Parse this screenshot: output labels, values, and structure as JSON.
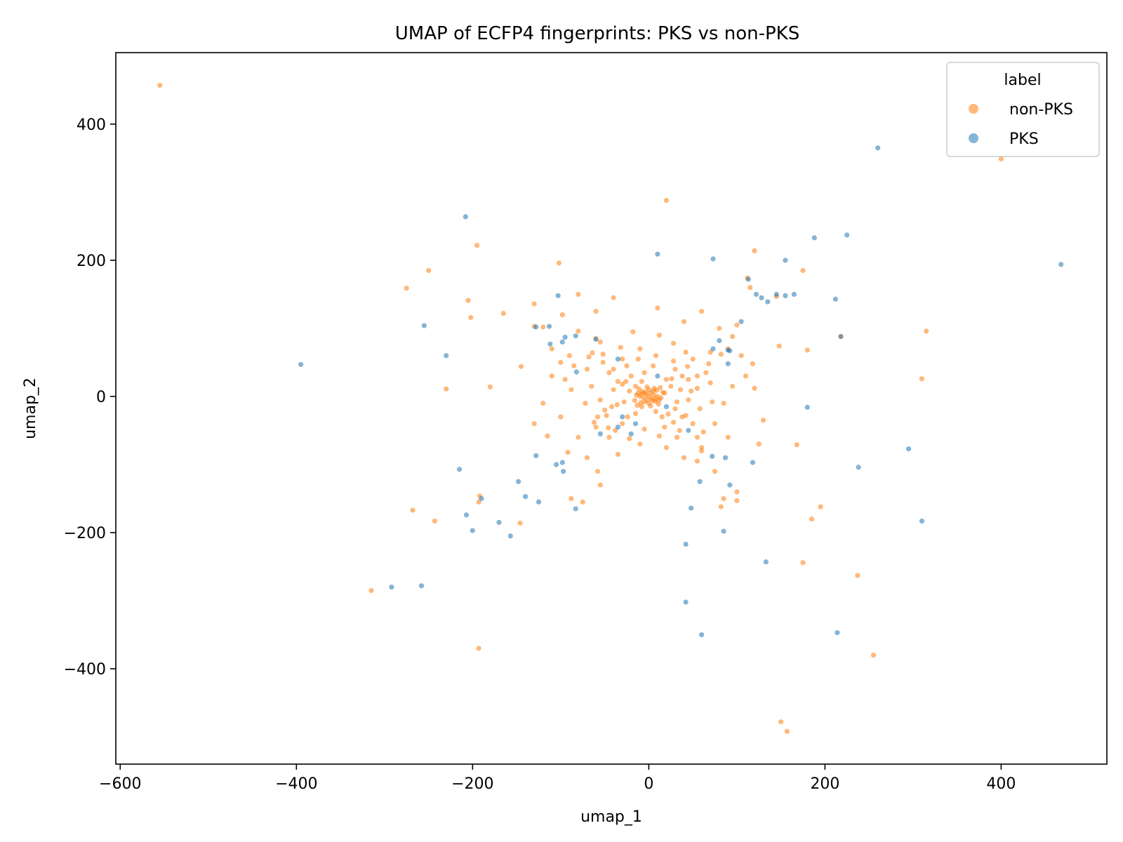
{
  "chart_data": {
    "type": "scatter",
    "title": "UMAP of ECFP4 fingerprints: PKS vs non-PKS",
    "xlabel": "umap_1",
    "ylabel": "umap_2",
    "xlim": [
      -605,
      520
    ],
    "ylim": [
      -540,
      505
    ],
    "xticks": [
      -600,
      -400,
      -200,
      0,
      200,
      400
    ],
    "yticks": [
      -400,
      -200,
      0,
      200,
      400
    ],
    "xtick_labels": [
      "−600",
      "−400",
      "−200",
      "0",
      "200",
      "400"
    ],
    "ytick_labels": [
      "−400",
      "−200",
      "0",
      "200",
      "400"
    ],
    "grid": false,
    "legend": {
      "title": "label",
      "placement": "top-right"
    },
    "series": [
      {
        "name": "non-PKS",
        "color": "#ff7f0e",
        "points": [
          [
            -555,
            457
          ],
          [
            -275,
            159
          ],
          [
            -250,
            185
          ],
          [
            -195,
            222
          ],
          [
            -205,
            141
          ],
          [
            -202,
            116
          ],
          [
            -180,
            14
          ],
          [
            -230,
            11
          ],
          [
            -165,
            122
          ],
          [
            -145,
            44
          ],
          [
            -268,
            -167
          ],
          [
            -243,
            -183
          ],
          [
            -315,
            -285
          ],
          [
            -192,
            -146
          ],
          [
            -193,
            -155
          ],
          [
            -146,
            -186
          ],
          [
            -193,
            -370
          ],
          [
            20,
            288
          ],
          [
            -102,
            196
          ],
          [
            -130,
            136
          ],
          [
            -120,
            102
          ],
          [
            -110,
            30
          ],
          [
            -80,
            150
          ],
          [
            -60,
            125
          ],
          [
            -55,
            80
          ],
          [
            -40,
            145
          ],
          [
            -90,
            60
          ],
          [
            -70,
            40
          ],
          [
            -30,
            55
          ],
          [
            -10,
            70
          ],
          [
            10,
            130
          ],
          [
            40,
            110
          ],
          [
            60,
            125
          ],
          [
            80,
            100
          ],
          [
            100,
            105
          ],
          [
            90,
            70
          ],
          [
            70,
            65
          ],
          [
            50,
            55
          ],
          [
            30,
            40
          ],
          [
            20,
            25
          ],
          [
            -20,
            30
          ],
          [
            -40,
            10
          ],
          [
            -50,
            -20
          ],
          [
            -60,
            -45
          ],
          [
            -45,
            -60
          ],
          [
            -30,
            -40
          ],
          [
            -15,
            -25
          ],
          [
            15,
            -30
          ],
          [
            35,
            -50
          ],
          [
            55,
            -60
          ],
          [
            75,
            -40
          ],
          [
            90,
            -60
          ],
          [
            60,
            -80
          ],
          [
            40,
            -90
          ],
          [
            20,
            -75
          ],
          [
            -10,
            -70
          ],
          [
            -35,
            -85
          ],
          [
            -70,
            -90
          ],
          [
            -80,
            -60
          ],
          [
            -100,
            -30
          ],
          [
            -120,
            -10
          ],
          [
            -130,
            -40
          ],
          [
            -115,
            -58
          ],
          [
            -92,
            -82
          ],
          [
            -58,
            -110
          ],
          [
            -55,
            -130
          ],
          [
            -75,
            -155
          ],
          [
            -88,
            -150
          ],
          [
            -130,
            103
          ],
          [
            -98,
            120
          ],
          [
            -80,
            96
          ],
          [
            -60,
            85
          ],
          [
            -110,
            70
          ],
          [
            -95,
            25
          ],
          [
            -65,
            15
          ],
          [
            -45,
            35
          ],
          [
            -25,
            45
          ],
          [
            -15,
            15
          ],
          [
            -5,
            35
          ],
          [
            5,
            45
          ],
          [
            25,
            15
          ],
          [
            45,
            25
          ],
          [
            65,
            35
          ],
          [
            85,
            -10
          ],
          [
            110,
            30
          ],
          [
            120,
            12
          ],
          [
            125,
            -70
          ],
          [
            130,
            -35
          ],
          [
            115,
            160
          ],
          [
            120,
            214
          ],
          [
            112,
            174
          ],
          [
            145,
            147
          ],
          [
            175,
            185
          ],
          [
            148,
            74
          ],
          [
            180,
            68
          ],
          [
            218,
            88
          ],
          [
            310,
            26
          ],
          [
            315,
            96
          ],
          [
            400,
            349
          ],
          [
            185,
            -180
          ],
          [
            195,
            -162
          ],
          [
            175,
            -244
          ],
          [
            237,
            -263
          ],
          [
            255,
            -380
          ],
          [
            150,
            -478
          ],
          [
            157,
            -492
          ],
          [
            168,
            -71
          ],
          [
            100,
            -140
          ],
          [
            100,
            -153
          ],
          [
            85,
            -150
          ],
          [
            82,
            -162
          ],
          [
            75,
            -110
          ],
          [
            55,
            -95
          ],
          [
            60,
            -75
          ],
          [
            32,
            -60
          ],
          [
            18,
            -45
          ],
          [
            8,
            -22
          ],
          [
            -8,
            -15
          ],
          [
            -28,
            -8
          ],
          [
            -48,
            -28
          ],
          [
            -62,
            -38
          ],
          [
            -38,
            -50
          ],
          [
            -22,
            -62
          ],
          [
            -5,
            -48
          ],
          [
            12,
            -58
          ],
          [
            28,
            -38
          ],
          [
            42,
            -28
          ],
          [
            58,
            -18
          ],
          [
            72,
            -8
          ],
          [
            95,
            15
          ],
          [
            70,
            20
          ],
          [
            48,
            8
          ],
          [
            38,
            30
          ],
          [
            28,
            52
          ],
          [
            8,
            60
          ],
          [
            -12,
            55
          ],
          [
            -32,
            72
          ],
          [
            -52,
            62
          ],
          [
            -68,
            58
          ],
          [
            -85,
            45
          ],
          [
            -100,
            50
          ],
          [
            -88,
            10
          ],
          [
            -72,
            -10
          ],
          [
            -55,
            -5
          ],
          [
            -42,
            -15
          ],
          [
            -35,
            22
          ],
          [
            -22,
            8
          ],
          [
            -8,
            22
          ],
          [
            6,
            12
          ],
          [
            18,
            5
          ],
          [
            32,
            -8
          ],
          [
            45,
            -5
          ],
          [
            55,
            12
          ],
          [
            68,
            48
          ],
          [
            82,
            62
          ],
          [
            95,
            88
          ],
          [
            105,
            60
          ],
          [
            118,
            48
          ],
          [
            -18,
            95
          ],
          [
            12,
            90
          ],
          [
            28,
            78
          ],
          [
            42,
            65
          ],
          [
            -2,
            -5
          ],
          [
            2,
            5
          ],
          [
            -3,
            3
          ],
          [
            3,
            -3
          ],
          [
            0,
            0
          ],
          [
            -6,
            -2
          ],
          [
            6,
            2
          ],
          [
            -4,
            6
          ],
          [
            4,
            -6
          ],
          [
            -8,
            4
          ],
          [
            8,
            -4
          ],
          [
            -5,
            -8
          ],
          [
            5,
            8
          ],
          [
            -10,
            0
          ],
          [
            10,
            0
          ],
          [
            0,
            -10
          ],
          [
            0,
            10
          ],
          [
            -7,
            7
          ],
          [
            7,
            -7
          ],
          [
            -12,
            5
          ],
          [
            12,
            -5
          ],
          [
            -9,
            -9
          ],
          [
            9,
            9
          ],
          [
            -14,
            2
          ],
          [
            14,
            -2
          ],
          [
            -2,
            14
          ],
          [
            2,
            -14
          ],
          [
            -16,
            -6
          ],
          [
            16,
            6
          ],
          [
            -11,
            11
          ],
          [
            11,
            -11
          ],
          [
            -13,
            -13
          ],
          [
            13,
            13
          ],
          [
            22,
            -26
          ],
          [
            -26,
            22
          ],
          [
            26,
            26
          ],
          [
            -24,
            -30
          ],
          [
            30,
            -18
          ],
          [
            -30,
            18
          ],
          [
            36,
            10
          ],
          [
            -36,
            -12
          ],
          [
            38,
            -30
          ],
          [
            -40,
            40
          ],
          [
            44,
            44
          ],
          [
            -46,
            -46
          ],
          [
            50,
            -40
          ],
          [
            -52,
            50
          ],
          [
            55,
            30
          ],
          [
            -58,
            -30
          ],
          [
            62,
            -52
          ],
          [
            -64,
            64
          ]
        ]
      },
      {
        "name": "PKS",
        "color": "#1f77b4",
        "points": [
          [
            -208,
            264
          ],
          [
            -255,
            104
          ],
          [
            -230,
            60
          ],
          [
            -395,
            47
          ],
          [
            -215,
            -107
          ],
          [
            -207,
            -174
          ],
          [
            -200,
            -197
          ],
          [
            -190,
            -150
          ],
          [
            -170,
            -185
          ],
          [
            -157,
            -205
          ],
          [
            -148,
            -125
          ],
          [
            -140,
            -147
          ],
          [
            -125,
            -155
          ],
          [
            -128,
            -87
          ],
          [
            -105,
            -100
          ],
          [
            -98,
            -97
          ],
          [
            -97,
            -110
          ],
          [
            -83,
            -165
          ],
          [
            -292,
            -280
          ],
          [
            -258,
            -278
          ],
          [
            -103,
            148
          ],
          [
            -128,
            102
          ],
          [
            -113,
            103
          ],
          [
            -112,
            77
          ],
          [
            -98,
            80
          ],
          [
            -95,
            87
          ],
          [
            -83,
            89
          ],
          [
            -82,
            36
          ],
          [
            -60,
            84
          ],
          [
            -35,
            55
          ],
          [
            -30,
            -30
          ],
          [
            -20,
            -55
          ],
          [
            -15,
            -40
          ],
          [
            -55,
            -55
          ],
          [
            -35,
            -45
          ],
          [
            10,
            209
          ],
          [
            10,
            30
          ],
          [
            20,
            -15
          ],
          [
            45,
            -50
          ],
          [
            48,
            -164
          ],
          [
            42,
            -217
          ],
          [
            42,
            -302
          ],
          [
            60,
            -350
          ],
          [
            58,
            -125
          ],
          [
            73,
            202
          ],
          [
            73,
            70
          ],
          [
            80,
            82
          ],
          [
            90,
            48
          ],
          [
            90,
            68
          ],
          [
            92,
            67
          ],
          [
            87,
            -90
          ],
          [
            92,
            -130
          ],
          [
            85,
            -198
          ],
          [
            105,
            110
          ],
          [
            113,
            172
          ],
          [
            122,
            150
          ],
          [
            128,
            145
          ],
          [
            135,
            139
          ],
          [
            145,
            150
          ],
          [
            155,
            200
          ],
          [
            155,
            148
          ],
          [
            165,
            150
          ],
          [
            180,
            -16
          ],
          [
            118,
            -97
          ],
          [
            133,
            -243
          ],
          [
            188,
            233
          ],
          [
            212,
            143
          ],
          [
            218,
            88
          ],
          [
            225,
            237
          ],
          [
            238,
            -104
          ],
          [
            260,
            365
          ],
          [
            295,
            -77
          ],
          [
            310,
            -183
          ],
          [
            214,
            -347
          ],
          [
            468,
            194
          ],
          [
            72,
            -88
          ]
        ]
      }
    ]
  }
}
